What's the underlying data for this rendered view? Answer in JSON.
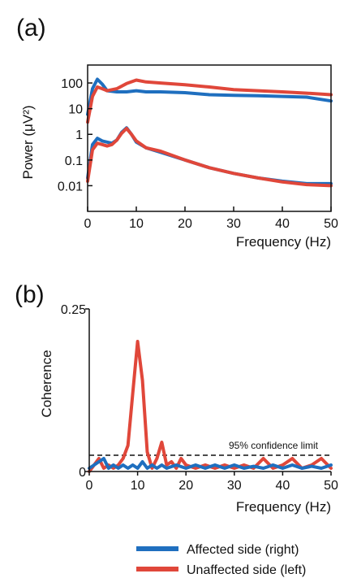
{
  "colors": {
    "affected": "#1f6fbf",
    "unaffected": "#e0473a",
    "axis": "#111111",
    "confidence_line": "#111111"
  },
  "legend": {
    "items": [
      {
        "label": "Affected side (right)",
        "color": "#1f6fbf"
      },
      {
        "label": "Unaffected side (left)",
        "color": "#e0473a"
      }
    ]
  },
  "chart_data": [
    {
      "panel": "(a)",
      "type": "line",
      "xlabel": "Frequency (Hz)",
      "ylabel": "Power (μV²)",
      "xlim": [
        0,
        50
      ],
      "ylim": [
        0.001,
        500
      ],
      "yscale": "log",
      "xticks": [
        "0",
        "10",
        "20",
        "30",
        "40",
        "50"
      ],
      "yticks": [
        {
          "value": 100,
          "label": "100"
        },
        {
          "value": 10,
          "label": "10"
        },
        {
          "value": 1,
          "label": "1"
        },
        {
          "value": 0.1,
          "label": "0.1"
        },
        {
          "value": 0.01,
          "label": "0.01"
        }
      ],
      "series": [
        {
          "group": "affected",
          "color": "#1f6fbf",
          "x": [
            0,
            1,
            2,
            3,
            4,
            6,
            8,
            10,
            12,
            15,
            20,
            25,
            30,
            35,
            40,
            45,
            50
          ],
          "y": [
            6,
            60,
            140,
            90,
            50,
            45,
            45,
            50,
            45,
            45,
            42,
            35,
            33,
            32,
            30,
            28,
            20
          ]
        },
        {
          "group": "unaffected",
          "color": "#e0473a",
          "x": [
            0,
            1,
            2,
            3,
            4,
            6,
            8,
            10,
            12,
            15,
            20,
            25,
            30,
            35,
            40,
            45,
            50
          ],
          "y": [
            3,
            30,
            70,
            60,
            50,
            60,
            95,
            130,
            110,
            100,
            85,
            70,
            55,
            50,
            45,
            40,
            35
          ]
        },
        {
          "group": "affected",
          "color": "#1f6fbf",
          "x": [
            0,
            1,
            2,
            3,
            4,
            5,
            6,
            7,
            8,
            9,
            10,
            12,
            15,
            20,
            25,
            30,
            35,
            40,
            45,
            50
          ],
          "y": [
            0.02,
            0.4,
            0.7,
            0.55,
            0.5,
            0.45,
            0.6,
            1.2,
            1.8,
            1.0,
            0.5,
            0.3,
            0.2,
            0.1,
            0.05,
            0.03,
            0.02,
            0.015,
            0.012,
            0.012
          ]
        },
        {
          "group": "unaffected",
          "color": "#e0473a",
          "x": [
            0,
            1,
            2,
            3,
            4,
            5,
            6,
            7,
            8,
            9,
            10,
            12,
            15,
            20,
            25,
            30,
            35,
            40,
            45,
            50
          ],
          "y": [
            0.015,
            0.25,
            0.45,
            0.4,
            0.35,
            0.4,
            0.6,
            1.1,
            1.7,
            1.0,
            0.55,
            0.3,
            0.22,
            0.1,
            0.05,
            0.03,
            0.02,
            0.014,
            0.011,
            0.01
          ]
        }
      ]
    },
    {
      "panel": "(b)",
      "type": "line",
      "xlabel": "Frequency (Hz)",
      "ylabel": "Coherence",
      "xlim": [
        0,
        50
      ],
      "ylim": [
        0,
        0.25
      ],
      "xticks": [
        "0",
        "10",
        "20",
        "30",
        "40",
        "50"
      ],
      "yticks": [
        {
          "value": 0,
          "label": "0"
        },
        {
          "value": 0.25,
          "label": "0.25"
        }
      ],
      "annotation": {
        "text": "95% confidence limit",
        "y": 0.025
      },
      "series": [
        {
          "group": "unaffected",
          "color": "#e0473a",
          "x": [
            0,
            1,
            2,
            3,
            4,
            5,
            6,
            7,
            8,
            9,
            10,
            11,
            12,
            13,
            14,
            15,
            16,
            17,
            18,
            19,
            20,
            22,
            24,
            26,
            28,
            30,
            32,
            34,
            36,
            38,
            40,
            42,
            44,
            46,
            48,
            50
          ],
          "y": [
            0.0,
            0.01,
            0.02,
            0.005,
            0.01,
            0.005,
            0.01,
            0.02,
            0.04,
            0.12,
            0.2,
            0.14,
            0.03,
            0.005,
            0.02,
            0.045,
            0.01,
            0.015,
            0.005,
            0.02,
            0.01,
            0.005,
            0.01,
            0.005,
            0.01,
            0.005,
            0.01,
            0.005,
            0.02,
            0.005,
            0.01,
            0.02,
            0.005,
            0.01,
            0.02,
            0.005
          ]
        },
        {
          "group": "affected",
          "color": "#1f6fbf",
          "x": [
            0,
            1,
            2,
            3,
            4,
            5,
            6,
            7,
            8,
            9,
            10,
            11,
            12,
            13,
            14,
            15,
            16,
            18,
            20,
            22,
            24,
            26,
            28,
            30,
            32,
            34,
            36,
            38,
            40,
            42,
            44,
            46,
            48,
            50
          ],
          "y": [
            0.005,
            0.01,
            0.015,
            0.02,
            0.005,
            0.01,
            0.005,
            0.01,
            0.005,
            0.01,
            0.005,
            0.015,
            0.005,
            0.01,
            0.005,
            0.01,
            0.005,
            0.01,
            0.005,
            0.01,
            0.005,
            0.01,
            0.005,
            0.01,
            0.005,
            0.008,
            0.005,
            0.01,
            0.005,
            0.01,
            0.005,
            0.008,
            0.005,
            0.01
          ]
        }
      ]
    }
  ]
}
